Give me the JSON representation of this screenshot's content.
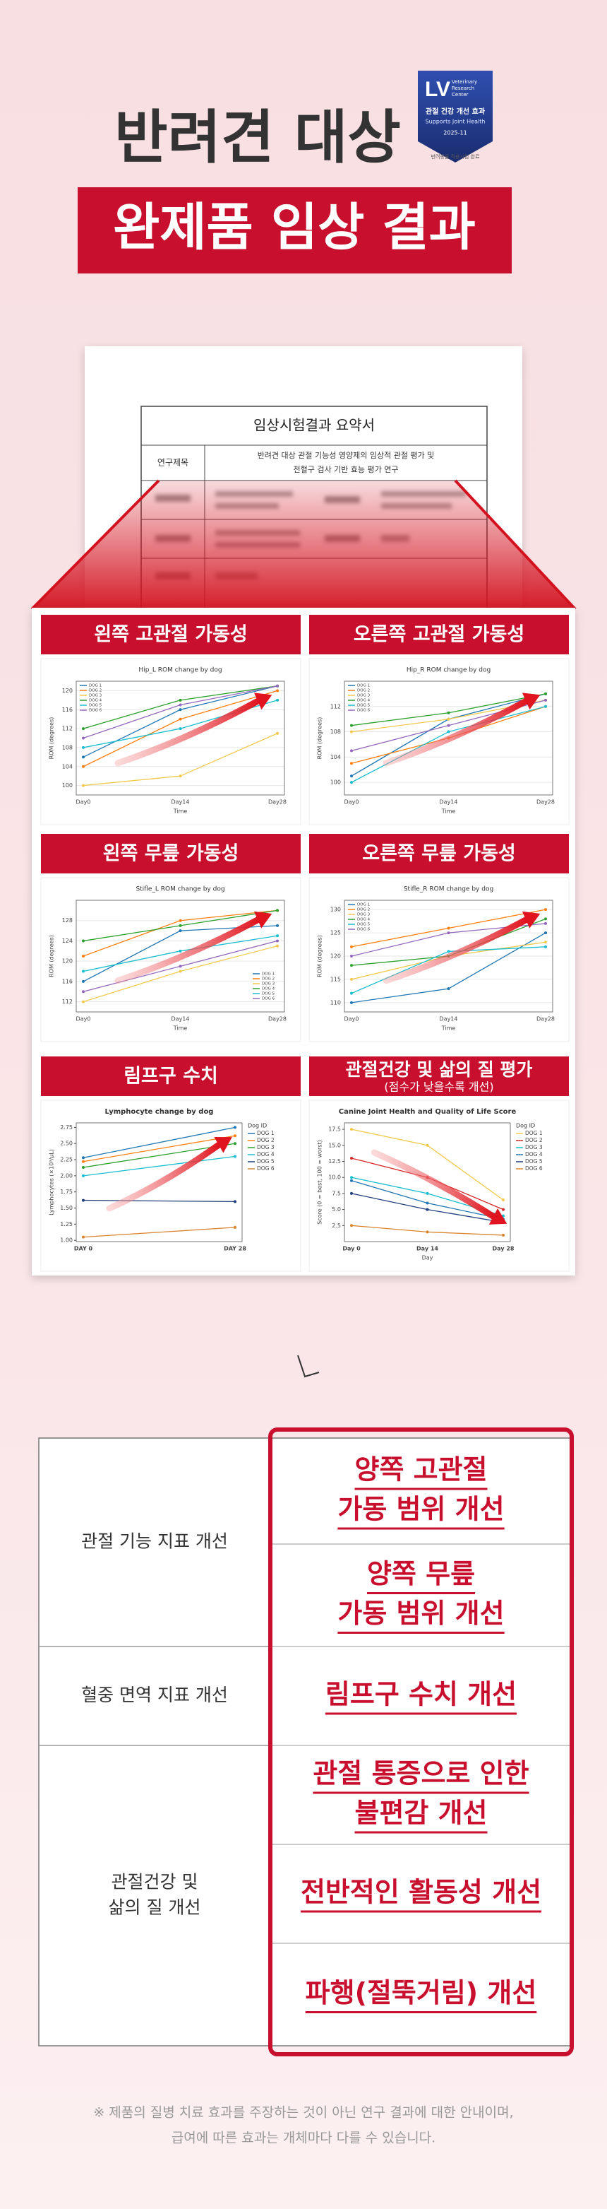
{
  "headline": {
    "line1": "반려견 대상",
    "line2": "완제품 임상 결과"
  },
  "badge": {
    "logo": "LV",
    "org": [
      "Veterinary",
      "Research",
      "Center"
    ],
    "title": "관절 건강 개선 효과",
    "subtitle": "Supports Joint Health",
    "date": "2025-11",
    "note": "반려동물 적용시험 완료"
  },
  "document": {
    "title": "임상시험결과 요약서",
    "rows": [
      [
        "연구제목",
        "반려견 대상 관절 기능성 영양제의 임상적 관절 평가 및",
        "전혈구 검사 기반 효능 평가 연구"
      ]
    ]
  },
  "chart_data": [
    {
      "type": "line",
      "heading": "왼쪽 고관절 가동성",
      "title": "Hip_L ROM change by dog",
      "categories": [
        "Day0",
        "Day14",
        "Day28"
      ],
      "xlabel": "Time",
      "ylabel": "ROM (degrees)",
      "ylim": [
        98,
        122
      ],
      "yticks": [
        100,
        104,
        108,
        112,
        116,
        120
      ],
      "grid": true,
      "legend": "upper left",
      "series": [
        {
          "name": "DOG 1",
          "color": "#1f77b4",
          "values": [
            106,
            116,
            121
          ]
        },
        {
          "name": "DOG 2",
          "color": "#ff7f0e",
          "values": [
            104,
            114,
            120
          ]
        },
        {
          "name": "DOG 3",
          "color": "#f2c94c",
          "values": [
            100,
            102,
            111
          ]
        },
        {
          "name": "DOG 4",
          "color": "#2ca02c",
          "values": [
            112,
            118,
            121
          ]
        },
        {
          "name": "DOG 5",
          "color": "#17becf",
          "values": [
            108,
            112,
            118
          ]
        },
        {
          "name": "DOG 6",
          "color": "#9467bd",
          "values": [
            110,
            117,
            121
          ]
        }
      ]
    },
    {
      "type": "line",
      "heading": "오른쪽 고관절 가동성",
      "title": "Hip_R ROM change by dog",
      "categories": [
        "Day0",
        "Day14",
        "Day28"
      ],
      "xlabel": "Time",
      "ylabel": "ROM (degrees)",
      "ylim": [
        98,
        116
      ],
      "yticks": [
        100,
        104,
        108,
        112
      ],
      "grid": true,
      "legend": "upper left",
      "series": [
        {
          "name": "DOG 1",
          "color": "#1f77b4",
          "values": [
            101,
            110,
            114
          ]
        },
        {
          "name": "DOG 2",
          "color": "#ff7f0e",
          "values": [
            103,
            107,
            112
          ]
        },
        {
          "name": "DOG 3",
          "color": "#f2c94c",
          "values": [
            108,
            110,
            113
          ]
        },
        {
          "name": "DOG 4",
          "color": "#2ca02c",
          "values": [
            109,
            111,
            114
          ]
        },
        {
          "name": "DOG 5",
          "color": "#17becf",
          "values": [
            100,
            108,
            112
          ]
        },
        {
          "name": "DOG 6",
          "color": "#9467bd",
          "values": [
            105,
            109,
            113
          ]
        }
      ]
    },
    {
      "type": "line",
      "heading": "왼쪽 무릎 가동성",
      "title": "Stifle_L ROM change by dog",
      "categories": [
        "Day0",
        "Day14",
        "Day28"
      ],
      "xlabel": "Time",
      "ylabel": "ROM (degrees)",
      "ylim": [
        110,
        132
      ],
      "yticks": [
        112,
        116,
        120,
        124,
        128
      ],
      "grid": true,
      "legend": "lower right",
      "series": [
        {
          "name": "DOG 1",
          "color": "#1f77b4",
          "values": [
            116,
            126,
            127
          ]
        },
        {
          "name": "DOG 2",
          "color": "#ff7f0e",
          "values": [
            121,
            128,
            130
          ]
        },
        {
          "name": "DOG 3",
          "color": "#f2c94c",
          "values": [
            112,
            118,
            123
          ]
        },
        {
          "name": "DOG 4",
          "color": "#2ca02c",
          "values": [
            124,
            127,
            130
          ]
        },
        {
          "name": "DOG 5",
          "color": "#17becf",
          "values": [
            118,
            122,
            125
          ]
        },
        {
          "name": "DOG 6",
          "color": "#9467bd",
          "values": [
            114,
            119,
            124
          ]
        }
      ]
    },
    {
      "type": "line",
      "heading": "오른쪽 무릎 가동성",
      "title": "Stifle_R ROM change by dog",
      "categories": [
        "Day0",
        "Day14",
        "Day28"
      ],
      "xlabel": "Time",
      "ylabel": "ROM (degrees)",
      "ylim": [
        108,
        132
      ],
      "yticks": [
        110,
        115,
        120,
        125,
        130
      ],
      "grid": true,
      "legend": "upper left",
      "series": [
        {
          "name": "DOG 1",
          "color": "#1f77b4",
          "values": [
            110,
            113,
            125
          ]
        },
        {
          "name": "DOG 2",
          "color": "#ff7f0e",
          "values": [
            122,
            126,
            130
          ]
        },
        {
          "name": "DOG 3",
          "color": "#f2c94c",
          "values": [
            115,
            120,
            123
          ]
        },
        {
          "name": "DOG 4",
          "color": "#2ca02c",
          "values": [
            118,
            120,
            128
          ]
        },
        {
          "name": "DOG 5",
          "color": "#17becf",
          "values": [
            112,
            121,
            122
          ]
        },
        {
          "name": "DOG 6",
          "color": "#9467bd",
          "values": [
            120,
            125,
            127
          ]
        }
      ]
    },
    {
      "type": "line",
      "heading": "림프구 수치",
      "title": "Lymphocyte change by dog",
      "categories": [
        "DAY 0",
        "DAY 28"
      ],
      "ylabel": "Lymphocytes (×10³/μL)",
      "ylim": [
        0.98,
        2.82
      ],
      "yticks": [
        {
          "value": 1,
          "label": "1.00"
        },
        1.25,
        {
          "value": 1.5,
          "label": "1.50"
        },
        1.75,
        {
          "value": 2,
          "label": "2.00"
        },
        2.25,
        {
          "value": 2.5,
          "label": "2.50"
        },
        2.75
      ],
      "grid": false,
      "legend": "right",
      "legend_title": "Dog ID",
      "series": [
        {
          "name": "DOG 1",
          "color": "#1f77b4",
          "values": [
            2.28,
            2.75
          ]
        },
        {
          "name": "DOG 2",
          "color": "#ff7f0e",
          "values": [
            2.22,
            2.62
          ]
        },
        {
          "name": "DOG 3",
          "color": "#2ca02c",
          "values": [
            2.13,
            2.5
          ]
        },
        {
          "name": "DOG 4",
          "color": "#17becf",
          "values": [
            2.0,
            2.3
          ]
        },
        {
          "name": "DOG 5",
          "color": "#1f3d7a",
          "values": [
            1.62,
            1.6
          ]
        },
        {
          "name": "DOG 6",
          "color": "#d9822b",
          "values": [
            1.05,
            1.2
          ]
        }
      ]
    },
    {
      "type": "line",
      "heading": "관절건강 및 삶의 질 평가",
      "note": "(점수가 낮을수록 개선)",
      "title": "Canine Joint Health and Quality of Life Score",
      "categories": [
        "Day 0",
        "Day 14",
        "Day 28"
      ],
      "xlabel": "Day",
      "ylabel": "Score (0 = best, 100 = worst)",
      "ylim": [
        0,
        18.5
      ],
      "yticks": [
        2.5,
        {
          "value": 5,
          "label": "5.0"
        },
        7.5,
        {
          "value": 10,
          "label": "10.0"
        },
        12.5,
        {
          "value": 15,
          "label": "15.0"
        },
        17.5
      ],
      "grid": false,
      "legend": "right",
      "legend_title": "Dog ID",
      "series": [
        {
          "name": "DOG 1",
          "color": "#f2c94c",
          "values": [
            17.5,
            15,
            6.5
          ]
        },
        {
          "name": "DOG 2",
          "color": "#d62728",
          "values": [
            13,
            10,
            5
          ]
        },
        {
          "name": "DOG 3",
          "color": "#17becf",
          "values": [
            10,
            7.5,
            4
          ]
        },
        {
          "name": "DOG 4",
          "color": "#1f77b4",
          "values": [
            9.5,
            6,
            3.5
          ]
        },
        {
          "name": "DOG 5",
          "color": "#1f3d7a",
          "values": [
            7.5,
            5,
            3
          ]
        },
        {
          "name": "DOG 6",
          "color": "#d9822b",
          "values": [
            2.5,
            1.5,
            1
          ]
        }
      ]
    }
  ],
  "results": {
    "groups": [
      {
        "label": [
          "관절 기능 지표 개선"
        ],
        "items": [
          [
            "양쪽 고관절",
            "가동 범위 개선"
          ],
          [
            "양쪽 무릎",
            "가동 범위 개선"
          ]
        ]
      },
      {
        "label": [
          "혈중 면역 지표 개선"
        ],
        "items": [
          [
            "림프구 수치 개선"
          ]
        ]
      },
      {
        "label": [
          "관절건강 및",
          "삶의 질 개선"
        ],
        "items": [
          [
            "관절 통증으로 인한",
            "불편감 개선"
          ],
          [
            "전반적인 활동성 개선"
          ],
          [
            "파행(절뚝거림) 개선"
          ]
        ]
      }
    ]
  },
  "footnote": [
    "※ 제품의 질병 치료 효과를 주장하는 것이 아닌 연구 결과에 대한 안내이며,",
    "급여에 따른 효과는 개체마다 다를 수 있습니다."
  ]
}
